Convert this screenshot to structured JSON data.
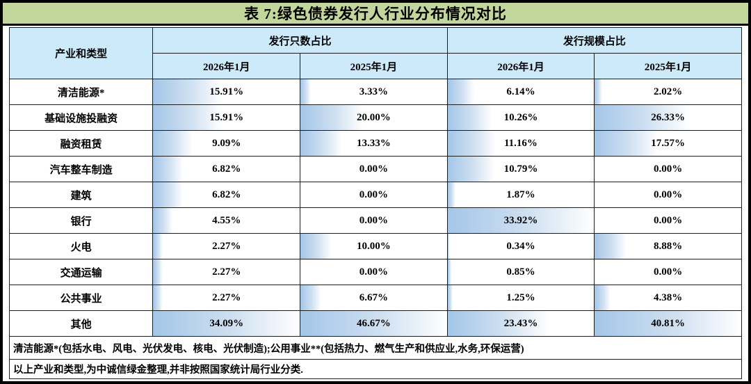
{
  "title": "表 7:绿色债券发行人行业分布情况对比",
  "table": {
    "industry_header": "产业和类型",
    "groups": [
      {
        "label": "发行只数占比",
        "sub": [
          "2026年1月",
          "2025年1月"
        ]
      },
      {
        "label": "发行规模占比",
        "sub": [
          "2026年1月",
          "2025年1月"
        ]
      }
    ],
    "rows": [
      {
        "label": "清洁能源*",
        "values": [
          "15.91%",
          "3.33%",
          "6.14%",
          "2.02%"
        ]
      },
      {
        "label": "基础设施投融资",
        "values": [
          "15.91%",
          "20.00%",
          "10.26%",
          "26.33%"
        ]
      },
      {
        "label": "融资租赁",
        "values": [
          "9.09%",
          "13.33%",
          "11.16%",
          "17.57%"
        ]
      },
      {
        "label": "汽车整车制造",
        "values": [
          "6.82%",
          "0.00%",
          "10.79%",
          "0.00%"
        ]
      },
      {
        "label": "建筑",
        "values": [
          "6.82%",
          "0.00%",
          "1.87%",
          "0.00%"
        ]
      },
      {
        "label": "银行",
        "values": [
          "4.55%",
          "0.00%",
          "33.92%",
          "0.00%"
        ]
      },
      {
        "label": "火电",
        "values": [
          "2.27%",
          "10.00%",
          "0.34%",
          "8.88%"
        ]
      },
      {
        "label": "交通运输",
        "values": [
          "2.27%",
          "0.00%",
          "0.85%",
          "0.00%"
        ]
      },
      {
        "label": "公共事业",
        "values": [
          "2.27%",
          "6.67%",
          "1.25%",
          "4.38%"
        ]
      },
      {
        "label": "其他",
        "values": [
          "34.09%",
          "46.67%",
          "23.43%",
          "40.81%"
        ]
      }
    ],
    "notes": [
      "清洁能源*(包括水电、风电、光伏发电、核电、光伏制造);公用事业**(包括热力、燃气生产和供应业,水务,环保运营)",
      "以上产业和类型,为中诚信绿金整理,并非按照国家统计局行业分类."
    ]
  },
  "colors": {
    "title_bg": "#c3d69b",
    "header_bg": "#cdeafb",
    "bar_start": "#a4c6e8",
    "bar_end": "#ffffff"
  }
}
